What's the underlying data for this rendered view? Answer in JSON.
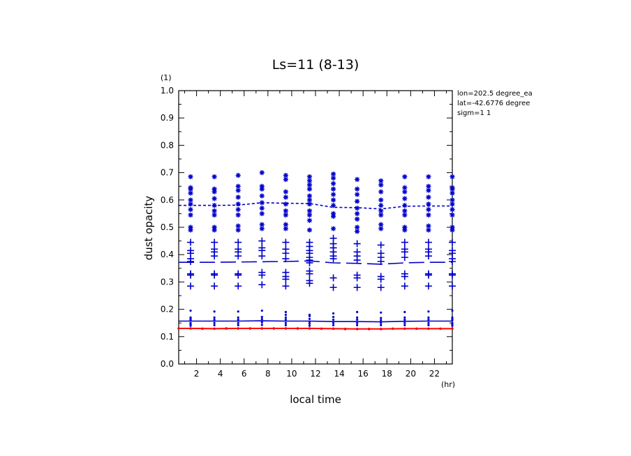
{
  "chart_data": {
    "type": "scatter",
    "title": "Ls=11 (8-13)",
    "xlabel": "local time",
    "ylabel": "dust opacity",
    "x_unit": "(hr)",
    "y_unit": "(1)",
    "xlim": [
      0.5,
      23.5
    ],
    "ylim": [
      0,
      1.0
    ],
    "x_ticks": [
      2,
      4,
      6,
      8,
      10,
      12,
      14,
      16,
      18,
      20,
      22
    ],
    "y_ticks": [
      0.0,
      0.1,
      0.2,
      0.3,
      0.4,
      0.5,
      0.6,
      0.7,
      0.8,
      0.9,
      1.0
    ],
    "y_tick_labels": [
      "0.0",
      "0.1",
      "0.2",
      "0.3",
      "0.4",
      "0.5",
      "0.6",
      "0.7",
      "0.8",
      "0.9",
      "1.0"
    ],
    "grid": false,
    "annotations": [
      "lon=202.5 degree_ea",
      "lat=-42.6776 degree",
      "sigm=1 1"
    ],
    "colors": {
      "blue": "#0000cc",
      "red": "#ff0000"
    },
    "x": [
      1.5,
      3.5,
      5.5,
      7.5,
      9.5,
      11.5,
      13.5,
      15.5,
      17.5,
      19.5,
      21.5,
      23.5
    ],
    "series": [
      {
        "marker": "dashed-line",
        "color": "#0000cc",
        "values": [
          0.58,
          0.58,
          0.581,
          0.59,
          0.588,
          0.587,
          0.573,
          0.572,
          0.567,
          0.577,
          0.578,
          0.578
        ]
      },
      {
        "marker": "long-dash-line",
        "color": "#0000cc",
        "values": [
          0.372,
          0.372,
          0.373,
          0.374,
          0.375,
          0.377,
          0.37,
          0.368,
          0.365,
          0.37,
          0.372,
          0.372
        ]
      },
      {
        "marker": "solid-line",
        "color": "#0000cc",
        "values": [
          0.157,
          0.157,
          0.157,
          0.158,
          0.157,
          0.157,
          0.155,
          0.155,
          0.154,
          0.156,
          0.157,
          0.157
        ]
      },
      {
        "marker": "solid-line-dots",
        "color": "#ff0000",
        "values": [
          0.13,
          0.129,
          0.13,
          0.13,
          0.13,
          0.13,
          0.129,
          0.128,
          0.128,
          0.129,
          0.129,
          0.129
        ]
      },
      {
        "marker": "asterisk",
        "color": "#0000cc",
        "points": [
          [
            1.5,
            0.685
          ],
          [
            1.5,
            0.645
          ],
          [
            1.5,
            0.64
          ],
          [
            1.5,
            0.625
          ],
          [
            1.5,
            0.6
          ],
          [
            1.5,
            0.585
          ],
          [
            1.5,
            0.565
          ],
          [
            1.5,
            0.545
          ],
          [
            1.5,
            0.5
          ],
          [
            1.5,
            0.49
          ],
          [
            3.5,
            0.685
          ],
          [
            3.5,
            0.64
          ],
          [
            3.5,
            0.63
          ],
          [
            3.5,
            0.605
          ],
          [
            3.5,
            0.58
          ],
          [
            3.5,
            0.56
          ],
          [
            3.5,
            0.545
          ],
          [
            3.5,
            0.5
          ],
          [
            3.5,
            0.49
          ],
          [
            5.5,
            0.69
          ],
          [
            5.5,
            0.65
          ],
          [
            5.5,
            0.635
          ],
          [
            5.5,
            0.61
          ],
          [
            5.5,
            0.585
          ],
          [
            5.5,
            0.565
          ],
          [
            5.5,
            0.545
          ],
          [
            5.5,
            0.505
          ],
          [
            5.5,
            0.49
          ],
          [
            7.5,
            0.7
          ],
          [
            7.5,
            0.65
          ],
          [
            7.5,
            0.64
          ],
          [
            7.5,
            0.615
          ],
          [
            7.5,
            0.59
          ],
          [
            7.5,
            0.57
          ],
          [
            7.5,
            0.55
          ],
          [
            7.5,
            0.51
          ],
          [
            7.5,
            0.495
          ],
          [
            9.5,
            0.69
          ],
          [
            9.5,
            0.675
          ],
          [
            9.5,
            0.63
          ],
          [
            9.5,
            0.61
          ],
          [
            9.5,
            0.585
          ],
          [
            9.5,
            0.56
          ],
          [
            9.5,
            0.545
          ],
          [
            9.5,
            0.51
          ],
          [
            9.5,
            0.495
          ],
          [
            11.5,
            0.685
          ],
          [
            11.5,
            0.67
          ],
          [
            11.5,
            0.655
          ],
          [
            11.5,
            0.64
          ],
          [
            11.5,
            0.615
          ],
          [
            11.5,
            0.6
          ],
          [
            11.5,
            0.585
          ],
          [
            11.5,
            0.56
          ],
          [
            11.5,
            0.545
          ],
          [
            11.5,
            0.525
          ],
          [
            11.5,
            0.49
          ],
          [
            13.5,
            0.695
          ],
          [
            13.5,
            0.68
          ],
          [
            13.5,
            0.66
          ],
          [
            13.5,
            0.64
          ],
          [
            13.5,
            0.62
          ],
          [
            13.5,
            0.6
          ],
          [
            13.5,
            0.58
          ],
          [
            13.5,
            0.55
          ],
          [
            13.5,
            0.54
          ],
          [
            13.5,
            0.495
          ],
          [
            15.5,
            0.675
          ],
          [
            15.5,
            0.64
          ],
          [
            15.5,
            0.62
          ],
          [
            15.5,
            0.595
          ],
          [
            15.5,
            0.57
          ],
          [
            15.5,
            0.55
          ],
          [
            15.5,
            0.53
          ],
          [
            15.5,
            0.5
          ],
          [
            15.5,
            0.485
          ],
          [
            17.5,
            0.67
          ],
          [
            17.5,
            0.655
          ],
          [
            17.5,
            0.63
          ],
          [
            17.5,
            0.6
          ],
          [
            17.5,
            0.58
          ],
          [
            17.5,
            0.56
          ],
          [
            17.5,
            0.545
          ],
          [
            17.5,
            0.51
          ],
          [
            17.5,
            0.495
          ],
          [
            19.5,
            0.685
          ],
          [
            19.5,
            0.645
          ],
          [
            19.5,
            0.63
          ],
          [
            19.5,
            0.605
          ],
          [
            19.5,
            0.58
          ],
          [
            19.5,
            0.56
          ],
          [
            19.5,
            0.545
          ],
          [
            19.5,
            0.5
          ],
          [
            19.5,
            0.49
          ],
          [
            21.5,
            0.685
          ],
          [
            21.5,
            0.65
          ],
          [
            21.5,
            0.635
          ],
          [
            21.5,
            0.61
          ],
          [
            21.5,
            0.585
          ],
          [
            21.5,
            0.565
          ],
          [
            21.5,
            0.545
          ],
          [
            21.5,
            0.505
          ],
          [
            21.5,
            0.49
          ],
          [
            23.5,
            0.685
          ],
          [
            23.5,
            0.645
          ],
          [
            23.5,
            0.64
          ],
          [
            23.5,
            0.625
          ],
          [
            23.5,
            0.6
          ],
          [
            23.5,
            0.585
          ],
          [
            23.5,
            0.565
          ],
          [
            23.5,
            0.545
          ],
          [
            23.5,
            0.5
          ],
          [
            23.5,
            0.49
          ]
        ]
      },
      {
        "marker": "plus",
        "color": "#0000cc",
        "points": [
          [
            1.5,
            0.445
          ],
          [
            1.5,
            0.415
          ],
          [
            1.5,
            0.405
          ],
          [
            1.5,
            0.385
          ],
          [
            1.5,
            0.375
          ],
          [
            1.5,
            0.33
          ],
          [
            1.5,
            0.325
          ],
          [
            1.5,
            0.285
          ],
          [
            3.5,
            0.445
          ],
          [
            3.5,
            0.42
          ],
          [
            3.5,
            0.41
          ],
          [
            3.5,
            0.395
          ],
          [
            3.5,
            0.33
          ],
          [
            3.5,
            0.325
          ],
          [
            3.5,
            0.285
          ],
          [
            5.5,
            0.445
          ],
          [
            5.5,
            0.42
          ],
          [
            5.5,
            0.41
          ],
          [
            5.5,
            0.395
          ],
          [
            5.5,
            0.33
          ],
          [
            5.5,
            0.325
          ],
          [
            5.5,
            0.285
          ],
          [
            7.5,
            0.45
          ],
          [
            7.5,
            0.425
          ],
          [
            7.5,
            0.415
          ],
          [
            7.5,
            0.395
          ],
          [
            7.5,
            0.335
          ],
          [
            7.5,
            0.325
          ],
          [
            7.5,
            0.29
          ],
          [
            9.5,
            0.445
          ],
          [
            9.5,
            0.42
          ],
          [
            9.5,
            0.405
          ],
          [
            9.5,
            0.385
          ],
          [
            9.5,
            0.335
          ],
          [
            9.5,
            0.32
          ],
          [
            9.5,
            0.31
          ],
          [
            9.5,
            0.285
          ],
          [
            11.5,
            0.445
          ],
          [
            11.5,
            0.43
          ],
          [
            11.5,
            0.415
          ],
          [
            11.5,
            0.405
          ],
          [
            11.5,
            0.39
          ],
          [
            11.5,
            0.38
          ],
          [
            11.5,
            0.37
          ],
          [
            11.5,
            0.34
          ],
          [
            11.5,
            0.33
          ],
          [
            11.5,
            0.305
          ],
          [
            11.5,
            0.295
          ],
          [
            13.5,
            0.46
          ],
          [
            13.5,
            0.44
          ],
          [
            13.5,
            0.425
          ],
          [
            13.5,
            0.41
          ],
          [
            13.5,
            0.395
          ],
          [
            13.5,
            0.385
          ],
          [
            13.5,
            0.315
          ],
          [
            13.5,
            0.28
          ],
          [
            15.5,
            0.44
          ],
          [
            15.5,
            0.41
          ],
          [
            15.5,
            0.395
          ],
          [
            15.5,
            0.38
          ],
          [
            15.5,
            0.325
          ],
          [
            15.5,
            0.315
          ],
          [
            15.5,
            0.28
          ],
          [
            17.5,
            0.435
          ],
          [
            17.5,
            0.405
          ],
          [
            17.5,
            0.39
          ],
          [
            17.5,
            0.375
          ],
          [
            17.5,
            0.32
          ],
          [
            17.5,
            0.31
          ],
          [
            17.5,
            0.28
          ],
          [
            19.5,
            0.445
          ],
          [
            19.5,
            0.42
          ],
          [
            19.5,
            0.41
          ],
          [
            19.5,
            0.39
          ],
          [
            19.5,
            0.33
          ],
          [
            19.5,
            0.32
          ],
          [
            19.5,
            0.285
          ],
          [
            21.5,
            0.445
          ],
          [
            21.5,
            0.42
          ],
          [
            21.5,
            0.41
          ],
          [
            21.5,
            0.395
          ],
          [
            21.5,
            0.33
          ],
          [
            21.5,
            0.325
          ],
          [
            21.5,
            0.285
          ],
          [
            23.5,
            0.445
          ],
          [
            23.5,
            0.415
          ],
          [
            23.5,
            0.405
          ],
          [
            23.5,
            0.385
          ],
          [
            23.5,
            0.375
          ],
          [
            23.5,
            0.33
          ],
          [
            23.5,
            0.325
          ],
          [
            23.5,
            0.285
          ]
        ]
      },
      {
        "marker": "dot",
        "color": "#0000cc",
        "points": [
          [
            1.5,
            0.195
          ],
          [
            1.5,
            0.17
          ],
          [
            1.5,
            0.165
          ],
          [
            1.5,
            0.16
          ],
          [
            1.5,
            0.15
          ],
          [
            1.5,
            0.145
          ],
          [
            1.5,
            0.14
          ],
          [
            3.5,
            0.192
          ],
          [
            3.5,
            0.17
          ],
          [
            3.5,
            0.162
          ],
          [
            3.5,
            0.15
          ],
          [
            3.5,
            0.142
          ],
          [
            5.5,
            0.192
          ],
          [
            5.5,
            0.17
          ],
          [
            5.5,
            0.162
          ],
          [
            5.5,
            0.15
          ],
          [
            5.5,
            0.142
          ],
          [
            7.5,
            0.195
          ],
          [
            7.5,
            0.172
          ],
          [
            7.5,
            0.164
          ],
          [
            7.5,
            0.152
          ],
          [
            7.5,
            0.143
          ],
          [
            9.5,
            0.19
          ],
          [
            9.5,
            0.18
          ],
          [
            9.5,
            0.17
          ],
          [
            9.5,
            0.162
          ],
          [
            9.5,
            0.15
          ],
          [
            9.5,
            0.142
          ],
          [
            11.5,
            0.18
          ],
          [
            11.5,
            0.175
          ],
          [
            11.5,
            0.165
          ],
          [
            11.5,
            0.155
          ],
          [
            11.5,
            0.148
          ],
          [
            11.5,
            0.14
          ],
          [
            13.5,
            0.185
          ],
          [
            13.5,
            0.172
          ],
          [
            13.5,
            0.162
          ],
          [
            13.5,
            0.15
          ],
          [
            13.5,
            0.142
          ],
          [
            15.5,
            0.19
          ],
          [
            15.5,
            0.17
          ],
          [
            15.5,
            0.162
          ],
          [
            15.5,
            0.15
          ],
          [
            15.5,
            0.142
          ],
          [
            17.5,
            0.188
          ],
          [
            17.5,
            0.168
          ],
          [
            17.5,
            0.16
          ],
          [
            17.5,
            0.15
          ],
          [
            17.5,
            0.142
          ],
          [
            19.5,
            0.19
          ],
          [
            19.5,
            0.17
          ],
          [
            19.5,
            0.162
          ],
          [
            19.5,
            0.15
          ],
          [
            19.5,
            0.142
          ],
          [
            21.5,
            0.192
          ],
          [
            21.5,
            0.17
          ],
          [
            21.5,
            0.162
          ],
          [
            21.5,
            0.15
          ],
          [
            21.5,
            0.142
          ],
          [
            23.5,
            0.195
          ],
          [
            23.5,
            0.17
          ],
          [
            23.5,
            0.165
          ],
          [
            23.5,
            0.16
          ],
          [
            23.5,
            0.15
          ],
          [
            23.5,
            0.145
          ],
          [
            23.5,
            0.14
          ]
        ]
      }
    ]
  }
}
